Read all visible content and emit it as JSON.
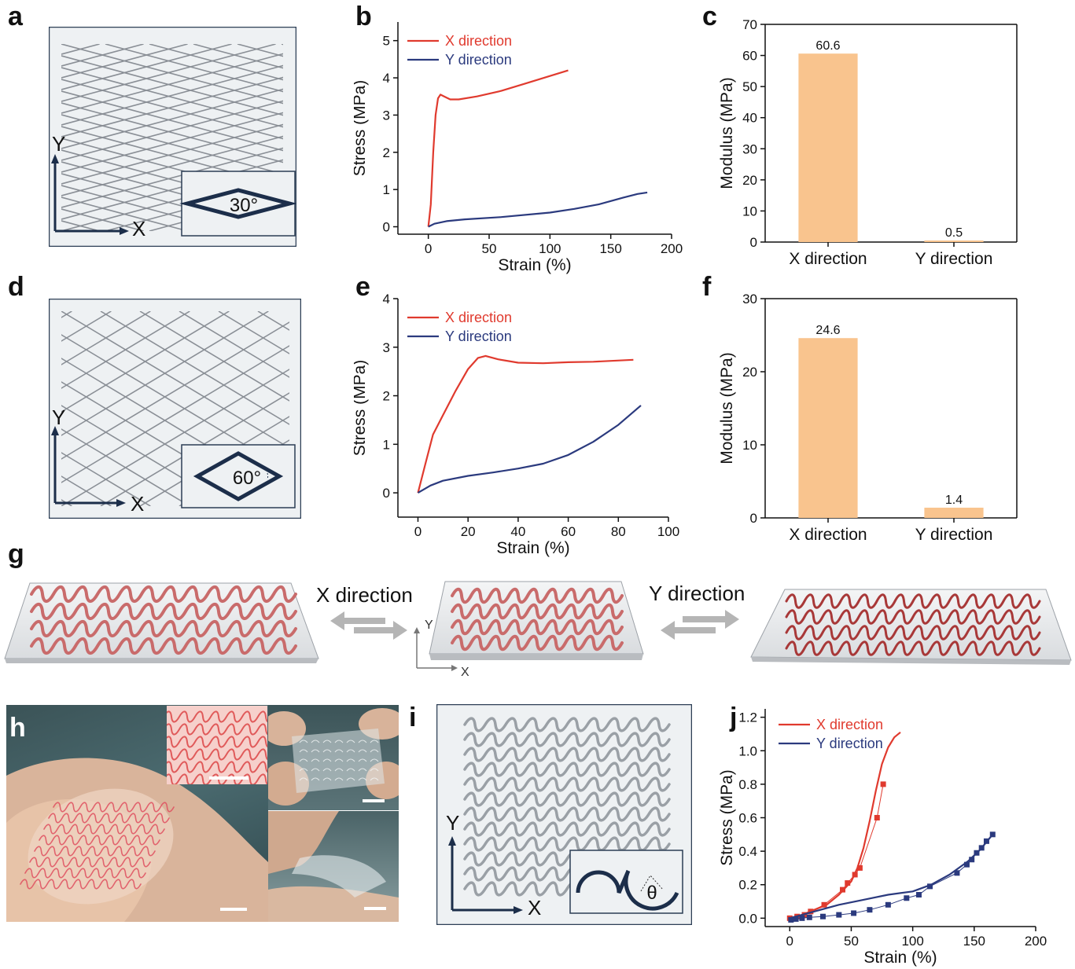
{
  "panel_labels": {
    "a": "a",
    "b": "b",
    "c": "c",
    "d": "d",
    "e": "e",
    "f": "f",
    "g": "g",
    "h": "h",
    "i": "i",
    "j": "j"
  },
  "schematics": {
    "axis_x": "X",
    "axis_y": "Y",
    "angle_a": "30°",
    "angle_d": "60°",
    "angle_i": "θ"
  },
  "panel_g": {
    "x_direction": "X direction",
    "y_direction": "Y direction",
    "axis_x": "X",
    "axis_y": "Y"
  },
  "chart_data": [
    {
      "id": "b",
      "type": "line",
      "xlabel": "Strain (%)",
      "ylabel": "Stress (MPa)",
      "xlim": [
        -25,
        200
      ],
      "ylim": [
        -0.2,
        5.5
      ],
      "xticks": [
        0,
        50,
        100,
        150,
        200
      ],
      "yticks": [
        0,
        1,
        2,
        3,
        4,
        5
      ],
      "legend_position": "top-left",
      "series": [
        {
          "name": "X direction",
          "color": "#e03a2e",
          "points": [
            [
              0,
              0
            ],
            [
              2,
              0.6
            ],
            [
              4,
              2.0
            ],
            [
              6,
              3.0
            ],
            [
              8,
              3.45
            ],
            [
              10,
              3.55
            ],
            [
              13,
              3.5
            ],
            [
              18,
              3.42
            ],
            [
              25,
              3.42
            ],
            [
              40,
              3.5
            ],
            [
              60,
              3.65
            ],
            [
              80,
              3.85
            ],
            [
              100,
              4.05
            ],
            [
              115,
              4.2
            ]
          ]
        },
        {
          "name": "Y direction",
          "color": "#2b3a7e",
          "points": [
            [
              0,
              0
            ],
            [
              5,
              0.08
            ],
            [
              15,
              0.15
            ],
            [
              30,
              0.2
            ],
            [
              60,
              0.26
            ],
            [
              100,
              0.38
            ],
            [
              120,
              0.48
            ],
            [
              140,
              0.6
            ],
            [
              160,
              0.78
            ],
            [
              172,
              0.88
            ],
            [
              180,
              0.92
            ]
          ]
        }
      ]
    },
    {
      "id": "c",
      "type": "bar",
      "categories": [
        "X direction",
        "Y direction"
      ],
      "values": [
        60.6,
        0.5
      ],
      "value_labels": [
        "60.6",
        "0.5"
      ],
      "ylabel": "Modulus (MPa)",
      "xlabel": "",
      "ylim": [
        0,
        70
      ],
      "yticks": [
        0,
        10,
        20,
        30,
        40,
        50,
        60,
        70
      ],
      "color": "#f9c48e"
    },
    {
      "id": "e",
      "type": "line",
      "xlabel": "Strain (%)",
      "ylabel": "Stress (MPa)",
      "xlim": [
        -8,
        100
      ],
      "ylim": [
        -0.5,
        4
      ],
      "xticks": [
        0,
        20,
        40,
        60,
        80,
        100
      ],
      "yticks": [
        0,
        1,
        2,
        3,
        4
      ],
      "legend_position": "top-left",
      "series": [
        {
          "name": "X direction",
          "color": "#e03a2e",
          "points": [
            [
              0,
              0
            ],
            [
              3,
              0.6
            ],
            [
              6,
              1.2
            ],
            [
              10,
              1.6
            ],
            [
              15,
              2.1
            ],
            [
              20,
              2.55
            ],
            [
              24,
              2.78
            ],
            [
              27,
              2.82
            ],
            [
              32,
              2.75
            ],
            [
              40,
              2.68
            ],
            [
              50,
              2.67
            ],
            [
              60,
              2.69
            ],
            [
              70,
              2.7
            ],
            [
              86,
              2.74
            ]
          ]
        },
        {
          "name": "Y direction",
          "color": "#2b3a7e",
          "points": [
            [
              0,
              0
            ],
            [
              5,
              0.15
            ],
            [
              10,
              0.25
            ],
            [
              20,
              0.35
            ],
            [
              30,
              0.42
            ],
            [
              40,
              0.5
            ],
            [
              50,
              0.6
            ],
            [
              60,
              0.78
            ],
            [
              70,
              1.05
            ],
            [
              80,
              1.4
            ],
            [
              89,
              1.8
            ]
          ]
        }
      ]
    },
    {
      "id": "f",
      "type": "bar",
      "categories": [
        "X direction",
        "Y direction"
      ],
      "values": [
        24.6,
        1.4
      ],
      "value_labels": [
        "24.6",
        "1.4"
      ],
      "ylabel": "Modulus (MPa)",
      "xlabel": "",
      "ylim": [
        0,
        30
      ],
      "yticks": [
        0,
        10,
        20,
        30
      ],
      "color": "#f9c48e"
    },
    {
      "id": "j",
      "type": "line",
      "xlabel": "Strain (%)",
      "ylabel": "Stress (MPa)",
      "xlim": [
        -20,
        200
      ],
      "ylim": [
        -0.05,
        1.25
      ],
      "xticks": [
        0,
        50,
        100,
        150,
        200
      ],
      "yticks": [
        0.0,
        0.2,
        0.4,
        0.6,
        0.8,
        1.0,
        1.2
      ],
      "legend_position": "top-left",
      "series": [
        {
          "name": "X direction",
          "color": "#e03a2e",
          "points": [
            [
              0,
              0
            ],
            [
              10,
              0.02
            ],
            [
              20,
              0.05
            ],
            [
              30,
              0.08
            ],
            [
              40,
              0.14
            ],
            [
              50,
              0.22
            ],
            [
              55,
              0.3
            ],
            [
              60,
              0.42
            ],
            [
              65,
              0.58
            ],
            [
              70,
              0.76
            ],
            [
              75,
              0.92
            ],
            [
              80,
              1.02
            ],
            [
              85,
              1.08
            ],
            [
              90,
              1.11
            ]
          ],
          "markers": [
            [
              0,
              0
            ],
            [
              6,
              0.01
            ],
            [
              12,
              0.02
            ],
            [
              17,
              0.04
            ],
            [
              28,
              0.08
            ],
            [
              43,
              0.17
            ],
            [
              47,
              0.21
            ],
            [
              53,
              0.26
            ],
            [
              57,
              0.3
            ],
            [
              71,
              0.6
            ],
            [
              76,
              0.8
            ]
          ]
        },
        {
          "name": "Y direction",
          "color": "#2b3a7e",
          "points": [
            [
              0,
              0
            ],
            [
              20,
              0.04
            ],
            [
              40,
              0.08
            ],
            [
              60,
              0.11
            ],
            [
              80,
              0.14
            ],
            [
              100,
              0.16
            ],
            [
              115,
              0.2
            ],
            [
              130,
              0.26
            ],
            [
              145,
              0.34
            ],
            [
              155,
              0.41
            ],
            [
              165,
              0.5
            ]
          ],
          "markers": [
            [
              1,
              -0.01
            ],
            [
              5,
              -0.005
            ],
            [
              10,
              0.0
            ],
            [
              16,
              0.005
            ],
            [
              27,
              0.01
            ],
            [
              40,
              0.02
            ],
            [
              52,
              0.03
            ],
            [
              65,
              0.05
            ],
            [
              80,
              0.08
            ],
            [
              95,
              0.12
            ],
            [
              105,
              0.14
            ],
            [
              114,
              0.19
            ],
            [
              136,
              0.27
            ],
            [
              144,
              0.32
            ],
            [
              148,
              0.35
            ],
            [
              152,
              0.39
            ],
            [
              156,
              0.42
            ],
            [
              160,
              0.46
            ],
            [
              165,
              0.5
            ]
          ]
        }
      ]
    }
  ]
}
